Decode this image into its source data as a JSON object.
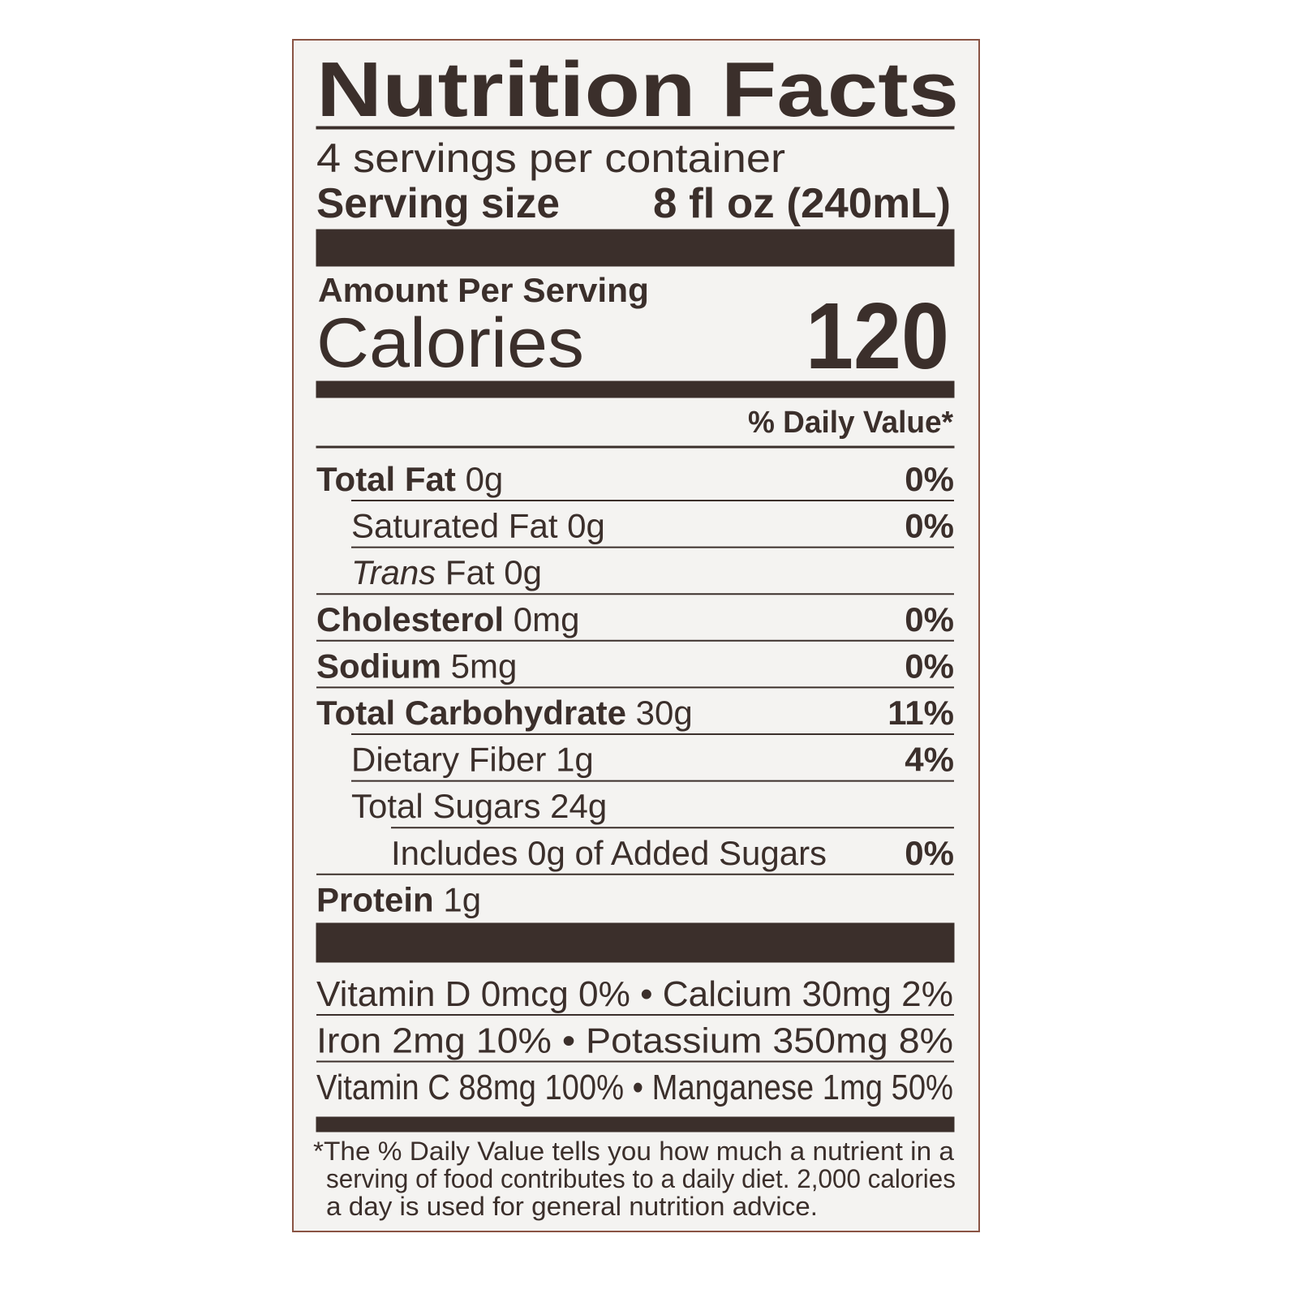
{
  "header": {
    "title": "Nutrition Facts",
    "servings": "4 servings per container",
    "serving_size_label": "Serving size",
    "serving_size_value": "8 fl oz (240mL)"
  },
  "calories": {
    "amount_per_serving": "Amount Per Serving",
    "label": "Calories",
    "value": "120"
  },
  "daily_value_header": "% Daily Value*",
  "rows": [
    {
      "name": "Total Fat",
      "amount": "0g",
      "dv": "0%",
      "indent": 0
    },
    {
      "name": "Saturated Fat",
      "amount": "0g",
      "dv": "0%",
      "indent": 1
    },
    {
      "name_italic": "Trans",
      "name": "Fat",
      "amount": "0g",
      "indent": 1
    },
    {
      "name": "Cholesterol",
      "amount": "0mg",
      "dv": "0%",
      "indent": 0
    },
    {
      "name": "Sodium",
      "amount": "5mg",
      "dv": "0%",
      "indent": 0
    },
    {
      "name": "Total Carbohydrate",
      "amount": "30g",
      "dv": "11%",
      "indent": 0
    },
    {
      "name": "Dietary Fiber",
      "amount": "1g",
      "dv": "4%",
      "indent": 1
    },
    {
      "name": "Total Sugars",
      "amount": "24g",
      "indent": 1
    },
    {
      "name": "Includes 0g of Added Sugars",
      "dv": "0%",
      "indent": 2
    },
    {
      "name": "Protein",
      "amount": "1g",
      "indent": 0
    }
  ],
  "vitamins": [
    "Vitamin D 0mcg 0% • Calcium 30mg 2%",
    "Iron 2mg 10% • Potassium 350mg 8%",
    "Vitamin C 88mg 100% • Manganese 1mg 50%"
  ],
  "footnote": [
    "*The % Daily Value tells you how much a nutrient in a",
    "serving of food contributes to a daily diet. 2,000 calories",
    "a day is used for general nutrition advice."
  ]
}
